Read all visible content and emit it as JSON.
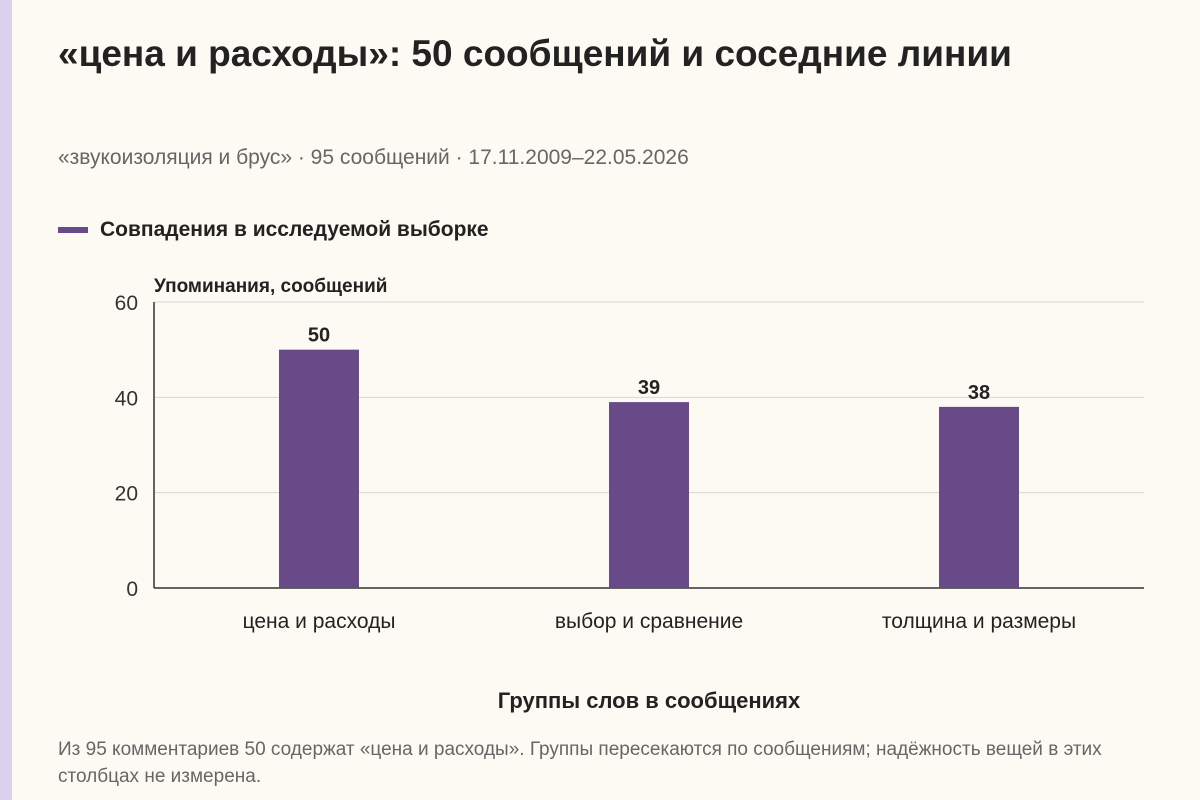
{
  "title": "«цена и расходы»: 50 сообщений и соседние линии",
  "subtitle": "«звукоизоляция и брус» · 95 сообщений · 17.11.2009–22.05.2026",
  "footnote": "Из 95 комментариев 50 содержат «цена и расходы». Группы пересекаются по сообщениям; надёжность вещей в этих столбцах не измерена.",
  "colors": {
    "bar": "#674a87",
    "background": "#fcfaf3",
    "grid": "#d9d6ce",
    "accent_strip": "#ddd0ee"
  },
  "chart_data": {
    "type": "bar",
    "categories": [
      "цена и расходы",
      "выбор и сравнение",
      "толщина и размеры"
    ],
    "series": [
      {
        "name": "Совпадения в исследуемой выборке",
        "values": [
          50,
          39,
          38
        ]
      }
    ],
    "xlabel": "Группы слов в сообщениях",
    "ylabel": "Упоминания, сообщений",
    "ylim": [
      0,
      60
    ],
    "yticks": [
      0,
      20,
      40,
      60
    ],
    "grid": true,
    "legend_position": "top-left",
    "data_labels": true
  }
}
